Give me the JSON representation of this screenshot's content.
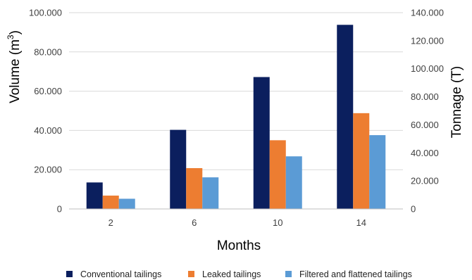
{
  "chart_data": {
    "type": "bar",
    "categories": [
      "2",
      "6",
      "10",
      "14"
    ],
    "series": [
      {
        "name": "Conventional tailings",
        "values": [
          13500,
          40300,
          67200,
          93800
        ],
        "color": "#0b1f5e"
      },
      {
        "name": "Leaked tailings",
        "values": [
          6800,
          20800,
          35000,
          48800
        ],
        "color": "#ed7d31"
      },
      {
        "name": "Filtered and flattened tailings",
        "values": [
          5200,
          16100,
          26800,
          37600
        ],
        "color": "#5b9bd5"
      }
    ],
    "xlabel": "Months",
    "ylabel": "Volume (m",
    "ylabel_sup": "3",
    "ylabel_end": ")",
    "y2label": "Tonnage (T)",
    "ylim": [
      0,
      100000
    ],
    "y2lim": [
      0,
      140000
    ],
    "yticks": [
      "0",
      "20.000",
      "40.000",
      "60.000",
      "80.000",
      "100.000"
    ],
    "y2ticks": [
      "0",
      "20.000",
      "40.000",
      "60.000",
      "80.000",
      "100.000",
      "120.000",
      "140.000"
    ],
    "grid": true,
    "legend_position": "bottom"
  }
}
